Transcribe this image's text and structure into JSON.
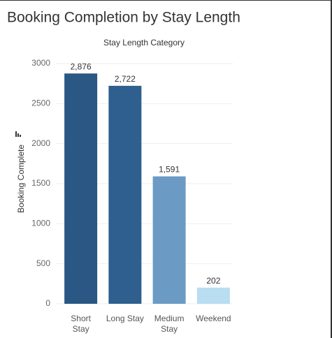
{
  "chart_data": {
    "type": "bar",
    "title": "Booking Completion by Stay Length",
    "subtitle": "Stay Length Category",
    "y_label": "Booking Complete",
    "categories": [
      "Short Stay",
      "Long Stay",
      "Medium Stay",
      "Weekend"
    ],
    "values": [
      2876,
      2722,
      1591,
      202
    ],
    "value_labels": [
      "2,876",
      "2,722",
      "1,591",
      "202"
    ],
    "colors": [
      "#2a5783",
      "#2e5f8e",
      "#6b9ac4",
      "#b9ddf1"
    ],
    "ylim": [
      0,
      3000
    ],
    "yticks": [
      0,
      500,
      1000,
      1500,
      2000,
      2500,
      3000
    ],
    "grid": true
  }
}
